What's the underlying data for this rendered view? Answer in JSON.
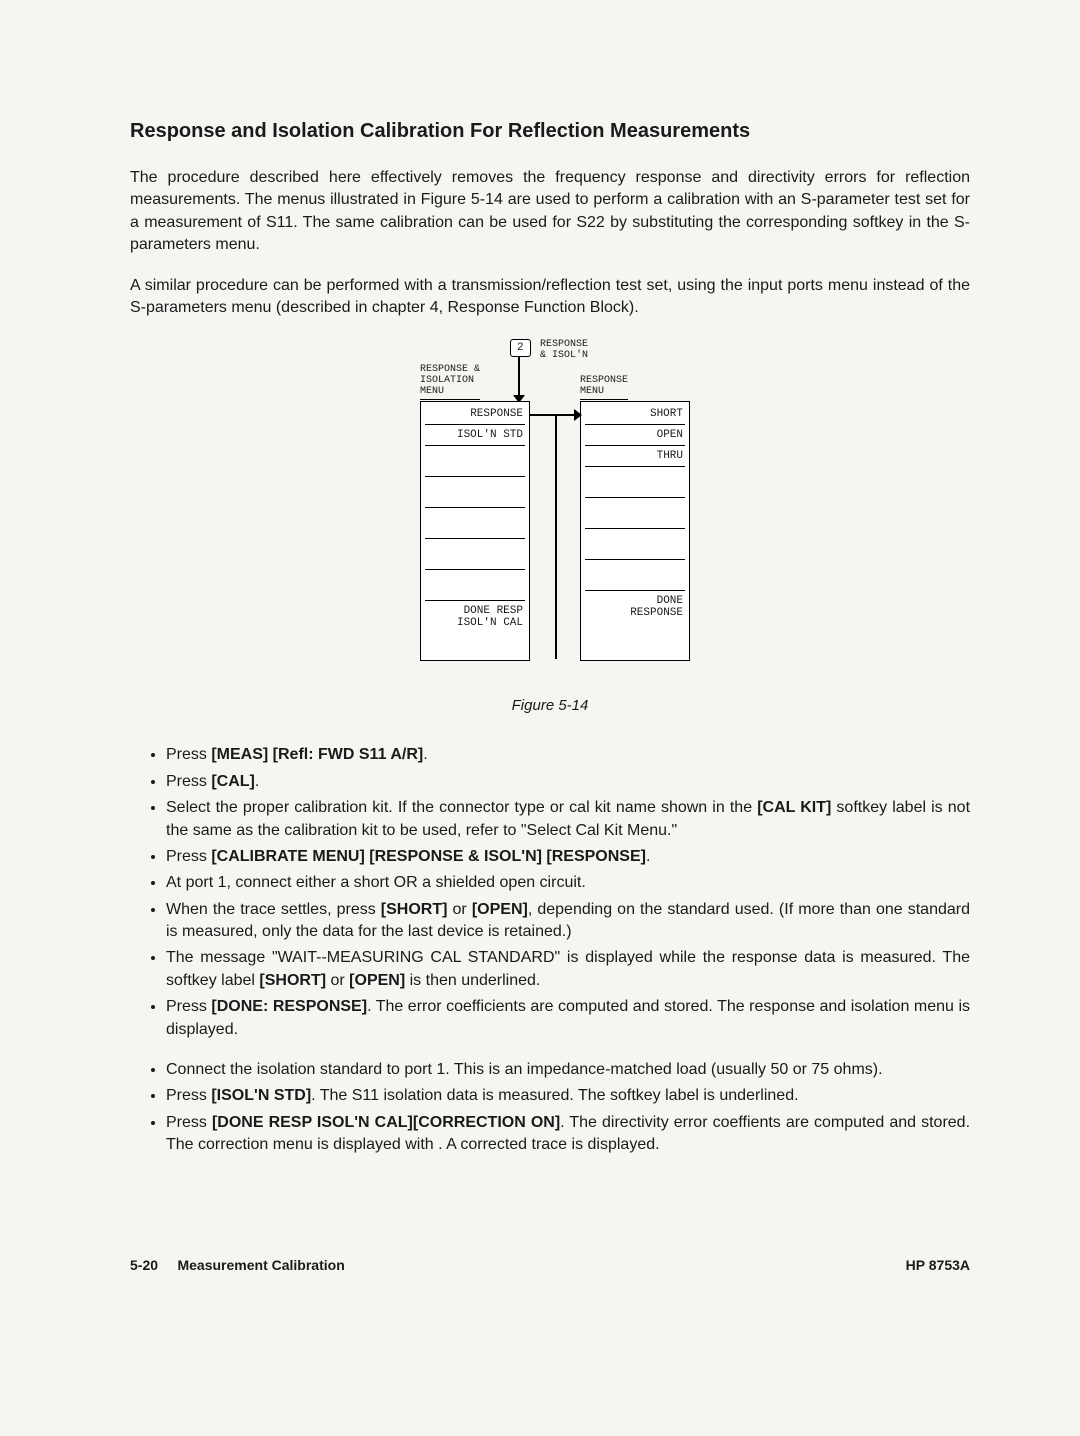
{
  "title": "Response and Isolation Calibration For Reflection Measurements",
  "para1": "The procedure described here effectively removes the frequency response and directivity errors for reflection measurements. The menus illustrated in Figure 5-14 are used to perform a calibration with an S-parameter test set for a measurement of S11. The same calibration can be used for S22 by substituting the corresponding softkey in the S-parameters menu.",
  "para2": "A similar procedure can be performed with a transmission/reflection test set, using the input ports menu instead of the S-parameters menu (described in chapter 4, Response Function Block).",
  "diagram": {
    "num_box": "2",
    "top_label": "RESPONSE\n& ISOL'N",
    "left_menu_title": "RESPONSE &\nISOLATION\nMENU",
    "right_menu_title": "RESPONSE\nMENU",
    "left_menu": {
      "r1": "RESPONSE",
      "r2": "ISOL'N STD",
      "r8": "DONE RESP\nISOL'N CAL"
    },
    "right_menu": {
      "r1": "SHORT",
      "r2": "OPEN",
      "r3": "THRU",
      "r8": "DONE\nRESPONSE"
    }
  },
  "figure_caption": "Figure 5-14",
  "steps1": [
    {
      "plain_before": "Press ",
      "bold": "[MEAS] [Refl: FWD S11 A/R]",
      "plain_after": "."
    },
    {
      "plain_before": "Press ",
      "bold": "[CAL]",
      "plain_after": "."
    },
    {
      "plain_before": "Select the proper calibration kit. If the connector type or cal kit name shown in the ",
      "bold": "[CAL KIT]",
      "plain_after": " softkey label is not the same as the calibration kit to be used, refer to \"Select Cal Kit Menu.\""
    },
    {
      "plain_before": "Press ",
      "bold": "[CALIBRATE MENU] [RESPONSE & ISOL'N] [RESPONSE]",
      "plain_after": "."
    },
    {
      "plain_before": "At port 1, connect either a short OR a shielded open circuit.",
      "bold": "",
      "plain_after": ""
    },
    {
      "plain_before": "When the trace settles, press ",
      "bold": "[SHORT]",
      "plain_mid": " or ",
      "bold2": "[OPEN]",
      "plain_after": ", depending on the standard used. (If more than one standard is measured, only the data for the last device is retained.)"
    },
    {
      "plain_before": "The message \"WAIT--MEASURING CAL STANDARD\" is displayed while the response data is measured. The softkey label ",
      "bold": "[SHORT]",
      "plain_mid": " or ",
      "bold2": "[OPEN]",
      "plain_after": " is then underlined."
    },
    {
      "plain_before": "Press ",
      "bold": "[DONE: RESPONSE]",
      "plain_after": ". The error coefficients are computed and stored. The response and isolation menu is displayed."
    }
  ],
  "steps2": [
    {
      "plain_before": "Connect the isolation standard to port 1. This is an impedance-matched load (usually 50 or 75 ohms).",
      "bold": "",
      "plain_after": ""
    },
    {
      "plain_before": "Press ",
      "bold": "[ISOL'N STD]",
      "plain_after": ". The S11 isolation data is measured. The softkey label is underlined."
    },
    {
      "plain_before": "Press ",
      "bold": "[DONE RESP ISOL'N CAL]",
      "plain_after": ". The directivity error coeffients are computed and stored. The correction menu is displayed with ",
      "bold2": "[CORRECTION ON]",
      "plain_after2": ". A corrected trace is displayed."
    }
  ],
  "footer": {
    "page_num": "5-20",
    "section": "Measurement Calibration",
    "model": "HP 8753A"
  }
}
